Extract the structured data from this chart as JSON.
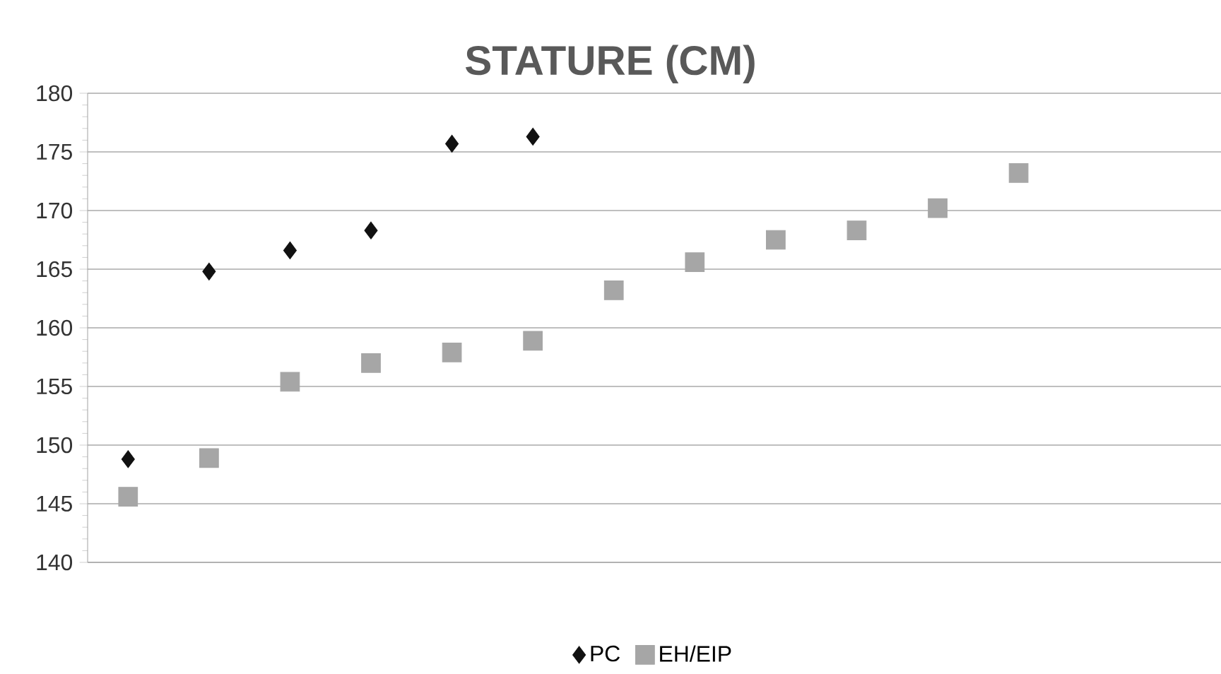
{
  "chart_data": {
    "type": "scatter",
    "title": "STATURE (CM)",
    "categories": [
      null,
      null,
      null,
      null,
      null,
      null,
      null,
      null,
      null,
      null,
      null,
      null,
      null,
      null
    ],
    "series": [
      {
        "name": "PC",
        "color": "#111111",
        "marker": "diamond",
        "values": [
          148.8,
          164.8,
          166.6,
          168.3,
          175.7,
          176.3,
          null,
          null,
          null,
          null,
          null,
          null,
          null,
          null
        ]
      },
      {
        "name": "EH/EIP",
        "color": "#a6a6a6",
        "marker": "square",
        "values": [
          145.6,
          148.9,
          155.4,
          157.0,
          157.9,
          158.9,
          163.2,
          165.6,
          167.5,
          168.3,
          170.2,
          173.2,
          null,
          null
        ]
      }
    ],
    "ylim": [
      140,
      180
    ],
    "yticks": [
      140,
      145,
      150,
      155,
      160,
      165,
      170,
      175,
      180
    ],
    "grid": "y",
    "legend": "bottom"
  }
}
